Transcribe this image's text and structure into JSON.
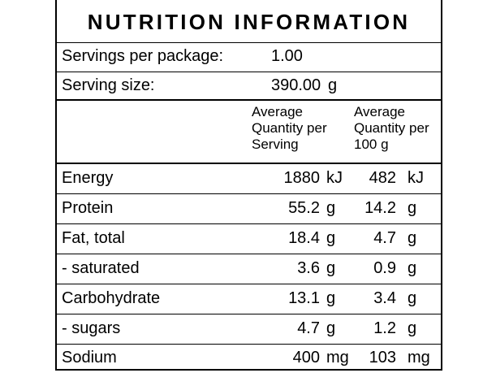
{
  "title": "NUTRITION INFORMATION",
  "servings_per_package": {
    "label": "Servings per package:",
    "value": "1.00",
    "unit": ""
  },
  "serving_size": {
    "label": "Serving size:",
    "value": "390.00",
    "unit": "g"
  },
  "columns": {
    "per_serving": [
      "Average",
      "Quantity per",
      "Serving"
    ],
    "per_100g": [
      "Average",
      "Quantity per",
      "100 g"
    ]
  },
  "rows": [
    {
      "name": "Energy",
      "serving": "1880",
      "serving_unit": "kJ",
      "per100": "482",
      "per100_unit": "kJ"
    },
    {
      "name": "Protein",
      "serving": "55.2",
      "serving_unit": "g",
      "per100": "14.2",
      "per100_unit": "g"
    },
    {
      "name": "Fat, total",
      "serving": "18.4",
      "serving_unit": "g",
      "per100": "4.7",
      "per100_unit": "g"
    },
    {
      "name": "- saturated",
      "serving": "3.6",
      "serving_unit": "g",
      "per100": "0.9",
      "per100_unit": "g"
    },
    {
      "name": "Carbohydrate",
      "serving": "13.1",
      "serving_unit": "g",
      "per100": "3.4",
      "per100_unit": "g"
    },
    {
      "name": "- sugars",
      "serving": "4.7",
      "serving_unit": "g",
      "per100": "1.2",
      "per100_unit": "g"
    },
    {
      "name": "Sodium",
      "serving": "400",
      "serving_unit": "mg",
      "per100": "103",
      "per100_unit": "mg"
    }
  ]
}
